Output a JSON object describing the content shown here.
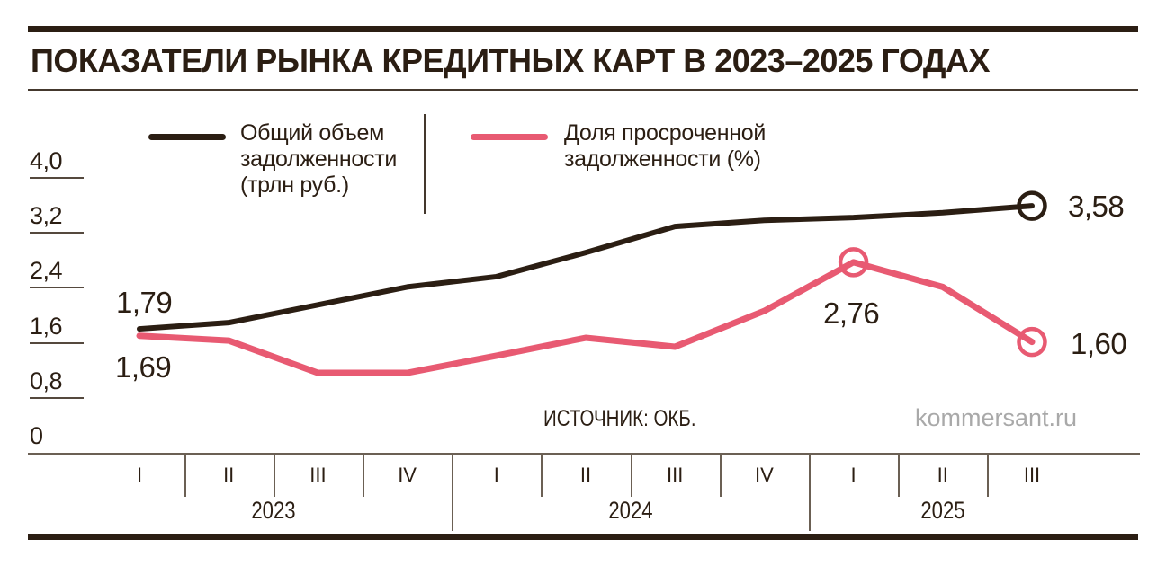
{
  "page": {
    "title": "ПОКАЗАТЕЛИ РЫНКА КРЕДИТНЫХ КАРТ В 2023–2025 ГОДАХ",
    "source_label": "ИСТОЧНИК: ОКБ.",
    "watermark": "kommersant.ru"
  },
  "colors": {
    "ink": "#2b1e13",
    "pink": "#e85a72",
    "axis_line": "#6b6054",
    "tick_line": "#55493e",
    "watermark_gray": "#a9a9a9",
    "background": "#ffffff"
  },
  "legend": {
    "total_debt": {
      "line1": "Общий объем",
      "line2": "задолженности",
      "line3": "(трлн руб.)",
      "color": "#2b1e13"
    },
    "overdue_share": {
      "line1": "Доля просроченной",
      "line2": "задолженности (%)",
      "color": "#e85a72"
    }
  },
  "chart_data": {
    "type": "line",
    "title": "Показатели рынка кредитных карт в 2023–2025 годах",
    "categories": [
      "I",
      "II",
      "III",
      "IV",
      "I",
      "II",
      "III",
      "IV",
      "I",
      "II",
      "III"
    ],
    "year_groups": [
      {
        "label": "2023",
        "quarters": 4
      },
      {
        "label": "2024",
        "quarters": 4
      },
      {
        "label": "2025",
        "quarters": 3
      }
    ],
    "y_ticks": [
      "4,0",
      "3,2",
      "2,4",
      "1,6",
      "0,8",
      "0"
    ],
    "ylim": [
      0,
      4.4
    ],
    "grid": false,
    "legend_position": "top",
    "series": [
      {
        "name": "Общий объем задолженности (трлн руб.)",
        "color": "#2b1e13",
        "values": [
          1.79,
          1.88,
          2.14,
          2.4,
          2.55,
          2.9,
          3.28,
          3.37,
          3.41,
          3.48,
          3.58
        ],
        "end_marker": true
      },
      {
        "name": "Доля просроченной задолженности (%)",
        "color": "#e85a72",
        "values": [
          1.69,
          1.62,
          1.15,
          1.15,
          1.4,
          1.66,
          1.53,
          2.05,
          2.76,
          2.4,
          1.6
        ],
        "end_marker": true,
        "peak_marker_index": 8
      }
    ],
    "annotations": [
      {
        "text": "1,79",
        "series": 0,
        "index": 0
      },
      {
        "text": "1,69",
        "series": 1,
        "index": 0
      },
      {
        "text": "2,76",
        "series": 1,
        "index": 8
      },
      {
        "text": "3,58",
        "series": 0,
        "index": 10
      },
      {
        "text": "1,60",
        "series": 1,
        "index": 10
      }
    ]
  }
}
